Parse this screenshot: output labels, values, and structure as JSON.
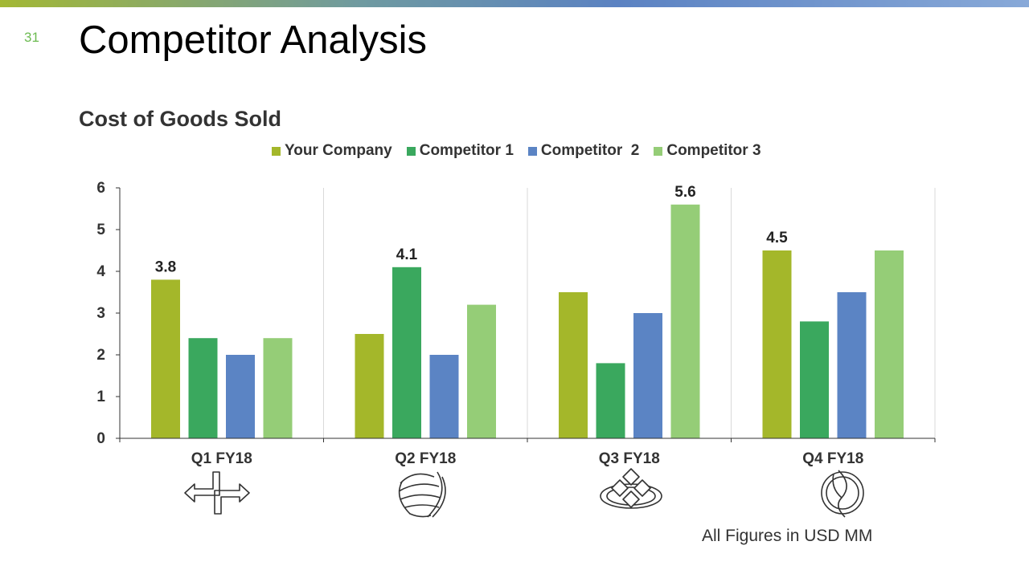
{
  "page": {
    "number": "31",
    "title": "Competitor Analysis",
    "footnote": "All Figures in USD MM"
  },
  "icons": [
    "arrows-exchange-icon",
    "sphere-swirl-icon",
    "diamond-tiles-icon",
    "leaf-circle-icon"
  ],
  "colors": {
    "your_company": "#a4b72a",
    "competitor_1": "#3aa85e",
    "competitor_2": "#5b84c4",
    "competitor_3": "#95cd77",
    "accent": "#6dbb52"
  },
  "chart_data": {
    "type": "bar",
    "title": "Cost of Goods Sold",
    "categories": [
      "Q1 FY18",
      "Q2 FY18",
      "Q3 FY18",
      "Q4 FY18"
    ],
    "series": [
      {
        "name": "Your Company",
        "values": [
          3.8,
          2.5,
          3.5,
          4.5
        ]
      },
      {
        "name": "Competitor 1",
        "values": [
          2.4,
          4.1,
          1.8,
          2.8
        ]
      },
      {
        "name": "Competitor  2",
        "values": [
          2.0,
          2.0,
          3.0,
          3.5
        ]
      },
      {
        "name": "Competitor 3",
        "values": [
          2.4,
          3.2,
          5.6,
          4.5
        ]
      }
    ],
    "data_labels": [
      {
        "category": "Q1 FY18",
        "series": "Your Company",
        "text": "3.8"
      },
      {
        "category": "Q2 FY18",
        "series": "Competitor 1",
        "text": "4.1"
      },
      {
        "category": "Q3 FY18",
        "series": "Competitor 3",
        "text": "5.6"
      },
      {
        "category": "Q4 FY18",
        "series": "Your Company",
        "text": "4.5"
      }
    ],
    "ylim": [
      0,
      6
    ],
    "yticks": [
      "0",
      "1",
      "2",
      "3",
      "4",
      "5",
      "6"
    ],
    "xlabel": "",
    "ylabel": "",
    "grid": "vertical category dividers",
    "legend": "top-center"
  }
}
